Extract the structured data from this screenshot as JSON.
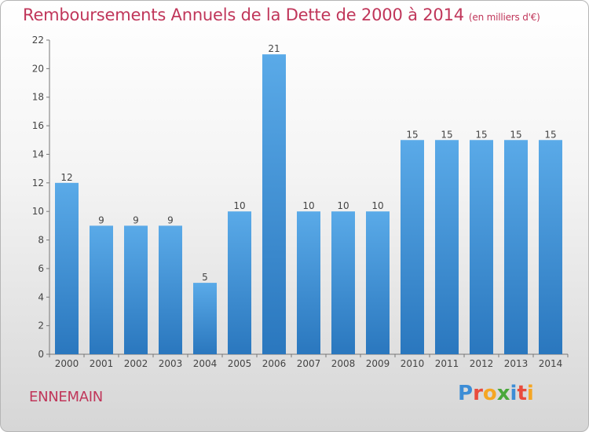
{
  "header": {
    "title": "Remboursements Annuels de la Dette de 2000 à 2014",
    "subtitle": "(en milliers d'€)"
  },
  "commune": "ENNEMAIN",
  "logo": {
    "text": "Proxiti"
  },
  "colors": {
    "bar": "#4f9fe0",
    "bar_dark": "#2a77be",
    "accent": "#c0365a"
  },
  "chart_data": {
    "type": "bar",
    "categories": [
      "2000",
      "2001",
      "2002",
      "2003",
      "2004",
      "2005",
      "2006",
      "2007",
      "2008",
      "2009",
      "2010",
      "2011",
      "2012",
      "2013",
      "2014"
    ],
    "values": [
      12,
      9,
      9,
      9,
      5,
      10,
      21,
      10,
      10,
      10,
      15,
      15,
      15,
      15,
      15
    ],
    "title": "Remboursements Annuels de la Dette de 2000 à 2014",
    "ylim": [
      0,
      22
    ],
    "yticks": [
      0,
      2,
      4,
      6,
      8,
      10,
      12,
      14,
      16,
      18,
      20,
      22
    ],
    "grid": false,
    "legend": "none"
  }
}
